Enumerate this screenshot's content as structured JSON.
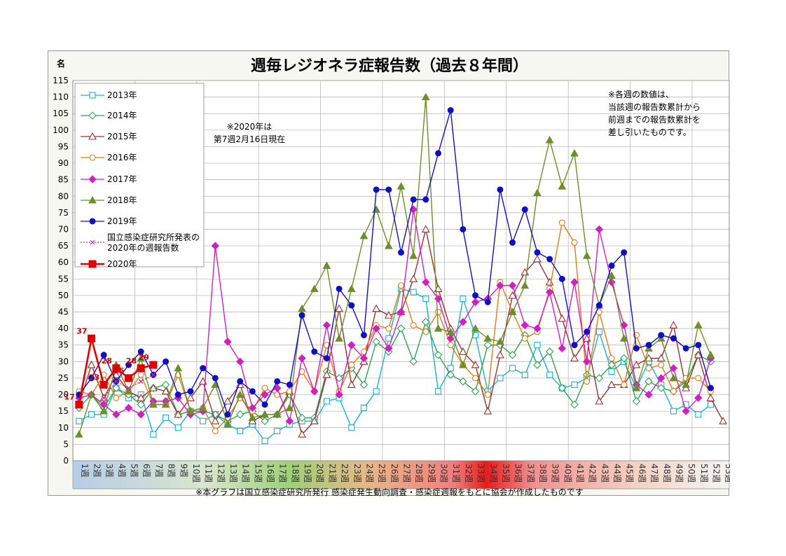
{
  "chart_data": {
    "type": "line",
    "title": "週毎レジオネラ症報告数（過去８年間）",
    "ylabel": "名",
    "ylim": [
      0,
      115
    ],
    "yticks": [
      0,
      5,
      10,
      15,
      20,
      25,
      30,
      35,
      40,
      45,
      50,
      55,
      60,
      65,
      70,
      75,
      80,
      85,
      90,
      95,
      100,
      105,
      110,
      115
    ],
    "categories": [
      "1週",
      "2週",
      "3週",
      "4週",
      "5週",
      "6週",
      "7週",
      "8週",
      "9週",
      "10週",
      "11週",
      "12週",
      "13週",
      "14週",
      "15週",
      "16週",
      "17週",
      "18週",
      "19週",
      "20週",
      "21週",
      "22週",
      "23週",
      "24週",
      "25週",
      "26週",
      "27週",
      "28週",
      "29週",
      "30週",
      "31週",
      "32週",
      "33週",
      "34週",
      "35週",
      "36週",
      "37週",
      "38週",
      "39週",
      "40週",
      "41週",
      "42週",
      "43週",
      "44週",
      "45週",
      "46週",
      "47週",
      "48週",
      "49週",
      "50週",
      "51週",
      "52週",
      "53週"
    ],
    "grid": true,
    "legend_position": "top-left",
    "note_2020": "※2020年は\n第7週2月16日現在",
    "note_right": "※各週の数値は、\n当該週の報告数累計から\n前週までの報告数累計を\n差し引いたものです。",
    "footer": "※本グラフは国立感染症研究所発行 感染症発生動向調査・感染症週報をもとに協会が作成したものです",
    "series": [
      {
        "name": "2013年",
        "color": "#1ab0d0",
        "marker": "square-open",
        "values": [
          12,
          14,
          14,
          22,
          19,
          20,
          8,
          13,
          10,
          15,
          12,
          14,
          11,
          9,
          11,
          6,
          9,
          11,
          12,
          12,
          18,
          19,
          10,
          16,
          21,
          37,
          52,
          51,
          49,
          21,
          28,
          49,
          38,
          21,
          25,
          28,
          26,
          35,
          26,
          22,
          23,
          25,
          39,
          27,
          30,
          22,
          30,
          23,
          15,
          17,
          14,
          17,
          null
        ]
      },
      {
        "name": "2014年",
        "color": "#2ca34f",
        "marker": "diamond-open",
        "values": [
          16,
          20,
          16,
          22,
          20,
          17,
          22,
          23,
          14,
          15,
          15,
          14,
          12,
          14,
          15,
          12,
          14,
          20,
          13,
          13,
          27,
          25,
          28,
          23,
          36,
          33,
          40,
          30,
          42,
          32,
          26,
          24,
          21,
          35,
          35,
          32,
          38,
          29,
          33,
          22,
          17,
          26,
          25,
          29,
          31,
          18,
          24,
          22,
          21,
          24,
          32,
          30,
          null
        ]
      },
      {
        "name": "2015年",
        "color": "#9c3030",
        "marker": "triangle-open",
        "values": [
          17,
          29,
          19,
          26,
          21,
          19,
          22,
          21,
          14,
          19,
          24,
          12,
          18,
          23,
          12,
          14,
          14,
          21,
          8,
          12,
          26,
          46,
          23,
          30,
          46,
          44,
          45,
          55,
          70,
          52,
          40,
          33,
          29,
          15,
          32,
          50,
          57,
          61,
          54,
          43,
          31,
          37,
          18,
          23,
          23,
          29,
          31,
          31,
          41,
          22,
          32,
          19,
          12
        ]
      },
      {
        "name": "2016年",
        "color": "#e07b15",
        "marker": "circle-open",
        "values": [
          21,
          20,
          26,
          19,
          21,
          26,
          17,
          17,
          26,
          15,
          16,
          9,
          13,
          19,
          15,
          22,
          20,
          21,
          27,
          21,
          35,
          21,
          29,
          33,
          41,
          40,
          53,
          41,
          39,
          45,
          35,
          29,
          25,
          20,
          54,
          45,
          37,
          39,
          52,
          72,
          66,
          24,
          45,
          31,
          23,
          38,
          28,
          29,
          21,
          25,
          25,
          21,
          null
        ]
      },
      {
        "name": "2017年",
        "color": "#d020c0",
        "marker": "diamond-filled",
        "values": [
          19,
          20,
          17,
          14,
          16,
          14,
          18,
          18,
          19,
          14,
          15,
          65,
          36,
          30,
          16,
          20,
          22,
          12,
          31,
          21,
          41,
          20,
          35,
          31,
          40,
          34,
          45,
          76,
          54,
          49,
          37,
          42,
          48,
          49,
          53,
          53,
          41,
          40,
          51,
          34,
          54,
          30,
          70,
          54,
          41,
          23,
          20,
          25,
          28,
          15,
          19,
          31,
          null
        ]
      },
      {
        "name": "2018年",
        "color": "#6d8e2a",
        "marker": "triangle-filled",
        "values": [
          8,
          20,
          15,
          29,
          21,
          31,
          17,
          17,
          28,
          15,
          16,
          23,
          11,
          20,
          13,
          14,
          14,
          16,
          46,
          52,
          59,
          37,
          52,
          68,
          76,
          65,
          83,
          62,
          110,
          40,
          39,
          29,
          40,
          37,
          36,
          45,
          53,
          81,
          97,
          83,
          93,
          62,
          47,
          56,
          37,
          22,
          34,
          37,
          25,
          23,
          41,
          32,
          null
        ]
      },
      {
        "name": "2019年",
        "color": "#1010c0",
        "marker": "circle-filled",
        "values": [
          20,
          25,
          32,
          24,
          29,
          33,
          26,
          30,
          20,
          21,
          28,
          25,
          14,
          24,
          21,
          17,
          24,
          23,
          44,
          33,
          31,
          52,
          47,
          38,
          82,
          82,
          63,
          79,
          79,
          93,
          106,
          70,
          50,
          48,
          82,
          66,
          76,
          63,
          61,
          55,
          35,
          39,
          47,
          59,
          63,
          34,
          35,
          38,
          37,
          34,
          35,
          22,
          null
        ]
      },
      {
        "name": "国立感染症研究所発表の\n2020年の週報告数",
        "color": "#d0208a",
        "marker": "x-small",
        "dotted": true,
        "values": [
          null,
          null,
          19,
          24,
          22,
          24,
          26,
          null,
          null,
          null,
          null,
          null,
          null,
          null,
          null,
          null,
          null,
          null,
          null,
          null,
          null,
          null,
          null,
          null,
          null,
          null,
          null,
          null,
          null,
          null,
          null,
          null,
          null,
          null,
          null,
          null,
          null,
          null,
          null,
          null,
          null,
          null,
          null,
          null,
          null,
          null,
          null,
          null,
          null,
          null,
          null,
          null,
          null
        ]
      },
      {
        "name": "2020年",
        "color": "#e00000",
        "marker": "square-filled",
        "bold": true,
        "values": [
          17,
          37,
          23,
          28,
          25,
          28,
          29,
          null,
          null,
          null,
          null,
          null,
          null,
          null,
          null,
          null,
          null,
          null,
          null,
          null,
          null,
          null,
          null,
          null,
          null,
          null,
          null,
          null,
          null,
          null,
          null,
          null,
          null,
          null,
          null,
          null,
          null,
          null,
          null,
          null,
          null,
          null,
          null,
          null,
          null,
          null,
          null,
          null,
          null,
          null,
          null,
          null,
          null
        ],
        "labels": [
          "17",
          "37",
          "23",
          "28",
          "25",
          "28",
          "29"
        ]
      }
    ]
  }
}
